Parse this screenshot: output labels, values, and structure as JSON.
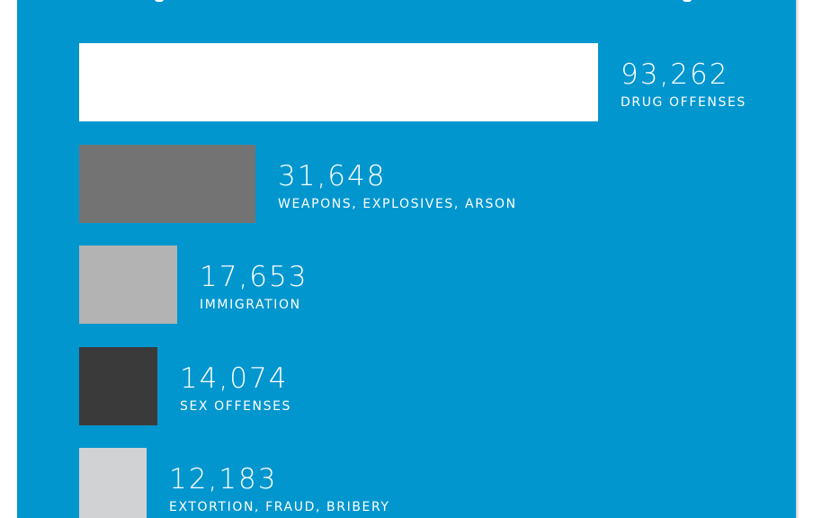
{
  "theme": {
    "background": "#0296cf",
    "text_color": "#ffffff"
  },
  "chart_data": {
    "type": "bar",
    "orientation": "horizontal",
    "title": "",
    "xlabel": "",
    "ylabel": "",
    "categories": [
      "DRUG OFFENSES",
      "WEAPONS, EXPLOSIVES, ARSON",
      "IMMIGRATION",
      "SEX OFFENSES",
      "EXTORTION, FRAUD, BRIBERY"
    ],
    "values": [
      93262,
      31648,
      17653,
      14074,
      12183
    ],
    "value_labels": [
      "93,262",
      "31,648",
      "17,653",
      "14,074",
      "12,183"
    ],
    "bar_colors": [
      "#ffffff",
      "#737373",
      "#b3b3b3",
      "#3a3a3a",
      "#d1d2d4"
    ],
    "xlim": [
      0,
      93262
    ],
    "grid": false,
    "legend": "none"
  }
}
